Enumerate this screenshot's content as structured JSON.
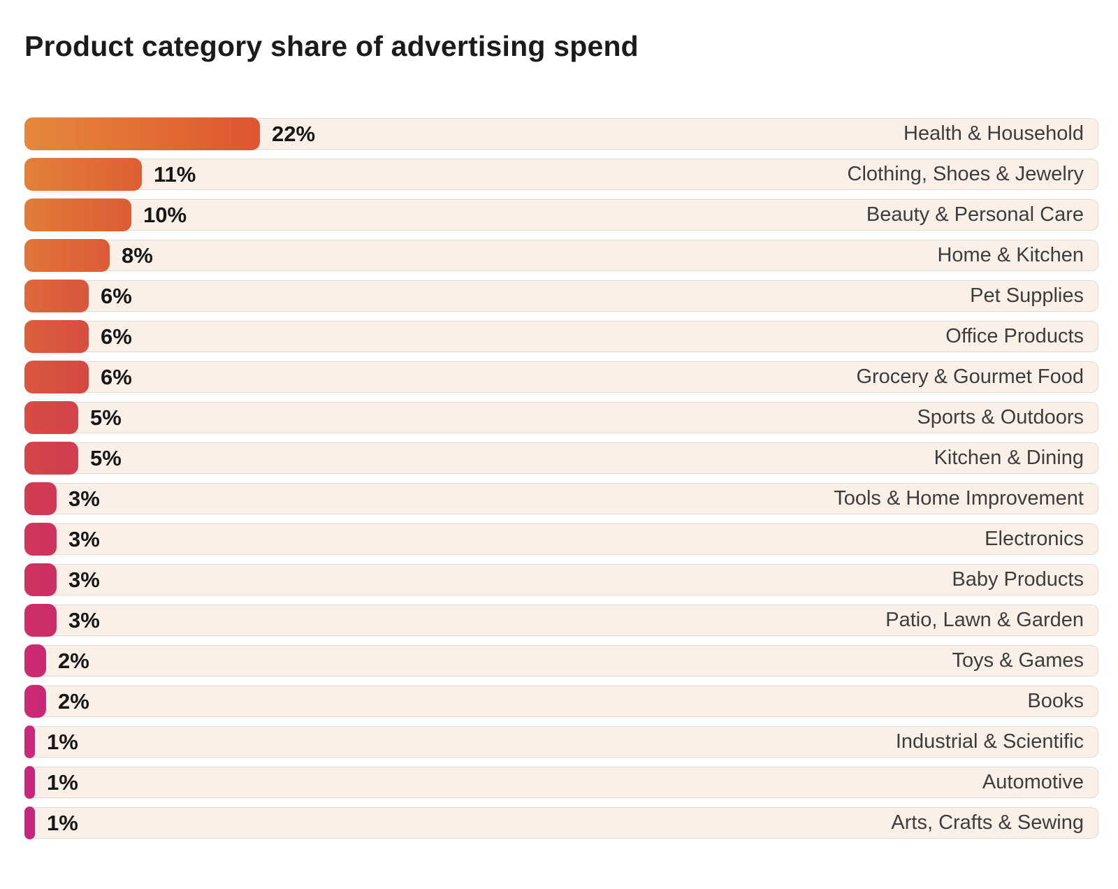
{
  "title": "Product category share of advertising spend",
  "colors": {
    "page_bg": "#FFFFFF",
    "row_bg": "#FBF0E8",
    "row_border": "#DFDAD3",
    "title_text": "#1B1B1B",
    "value_text": "#161616",
    "label_text": "#3D3D3D",
    "gradient_top": "#E5883B",
    "gradient_bottom": "#C7257E"
  },
  "chart_data": {
    "type": "bar",
    "orientation": "horizontal",
    "title": "Product category share of advertising spend",
    "unit": "%",
    "legend": "none",
    "grid": "off",
    "categories": [
      "Health & Household",
      "Clothing, Shoes & Jewelry",
      "Beauty & Personal Care",
      "Home & Kitchen",
      "Pet Supplies",
      "Office Products",
      "Grocery & Gourmet Food",
      "Sports & Outdoors",
      "Kitchen & Dining",
      "Tools & Home Improvement",
      "Electronics",
      "Baby Products",
      "Patio, Lawn & Garden",
      "Toys & Games",
      "Books",
      "Industrial & Scientific",
      "Automotive",
      "Arts, Crafts & Sewing"
    ],
    "values": [
      22,
      11,
      10,
      8,
      6,
      6,
      6,
      5,
      5,
      3,
      3,
      3,
      3,
      2,
      2,
      1,
      1,
      1
    ],
    "value_labels": [
      "22%",
      "11%",
      "10%",
      "8%",
      "6%",
      "6%",
      "6%",
      "5%",
      "5%",
      "3%",
      "3%",
      "3%",
      "3%",
      "2%",
      "2%",
      "1%",
      "1%",
      "1%"
    ],
    "bar_colors": [
      [
        "#E5883B",
        "#DF5530"
      ],
      [
        "#E28139",
        "#DD5F33"
      ],
      [
        "#E17B39",
        "#DC5C35"
      ],
      [
        "#E0743A",
        "#DB5C37"
      ],
      [
        "#DE683B",
        "#D9553C"
      ],
      [
        "#DC5F3C",
        "#D74E40"
      ],
      [
        "#DA573E",
        "#D54845"
      ],
      [
        "#D74C43",
        "#D3434B"
      ],
      [
        "#D54547",
        "#D13D51"
      ],
      [
        "#D33D50",
        "#D03857"
      ],
      [
        "#D1375A",
        "#CF325F"
      ],
      [
        "#CF3260",
        "#CD2F65"
      ],
      [
        "#CE2F67",
        "#CC2C6C"
      ],
      [
        "#CC2B6E",
        "#CB2A72"
      ],
      [
        "#CB2A74",
        "#CA2877"
      ],
      [
        "#CA2879",
        "#C9277A"
      ],
      [
        "#C9277B",
        "#C8267C"
      ],
      [
        "#C8267D",
        "#C7257E"
      ]
    ]
  }
}
